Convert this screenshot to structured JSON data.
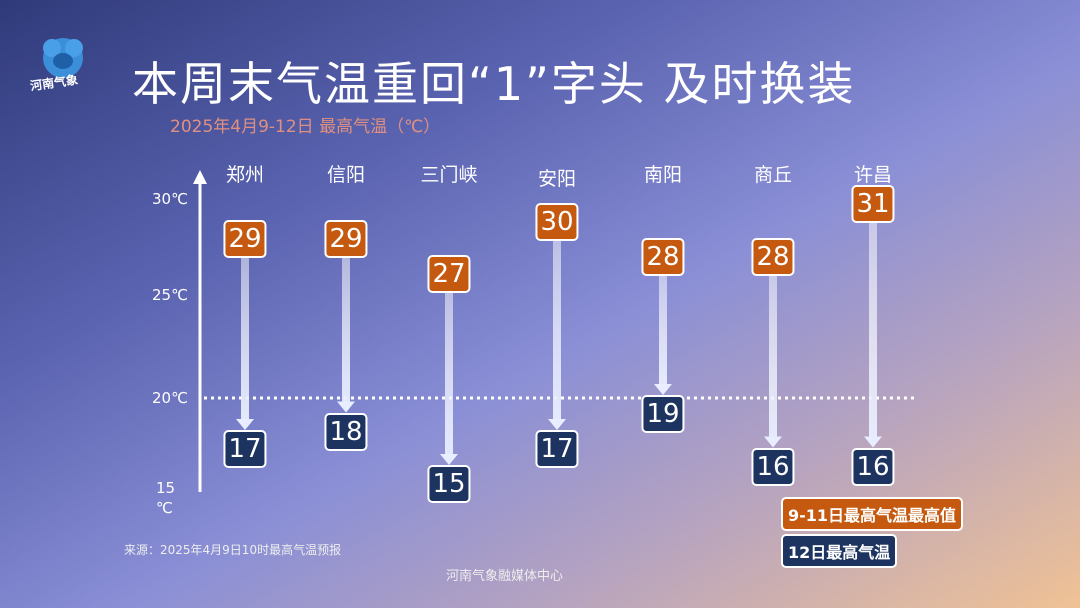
{
  "logo_text": "河南气象",
  "title": "本周末气温重回“1”字头  及时换装",
  "subtitle": "2025年4月9-12日 最高气温（℃）",
  "chart_data": {
    "type": "arrow-range",
    "categories": [
      "郑州",
      "信阳",
      "三门峡",
      "安阳",
      "南阳",
      "商丘",
      "许昌"
    ],
    "series": [
      {
        "name": "9-11日最高气温最高值",
        "values": [
          29,
          29,
          27,
          30,
          28,
          28,
          31
        ],
        "color": "#c5590f"
      },
      {
        "name": "12日最高气温",
        "values": [
          17,
          18,
          15,
          17,
          19,
          16,
          16
        ],
        "color": "#1d3461"
      }
    ],
    "y_ticks": [
      "30℃",
      "25℃",
      "20℃",
      "15\n℃"
    ],
    "ylim": [
      15,
      30
    ],
    "reference_line": 20
  },
  "source": "来源：2025年4月9日10时最高气温预报",
  "footer": "河南气象融媒体中心"
}
